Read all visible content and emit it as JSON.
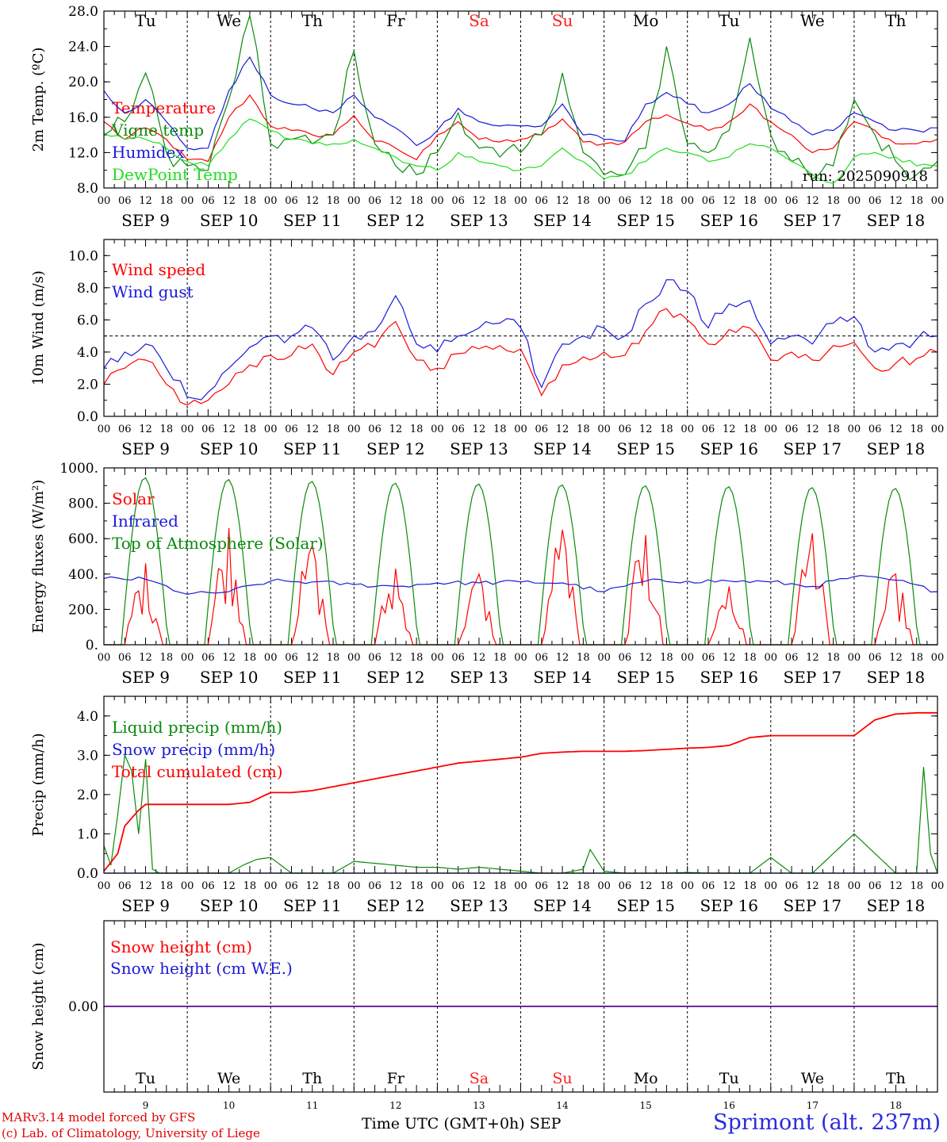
{
  "colors": {
    "red": "#ff0000",
    "green": "#0a8a0a",
    "blue": "#1a1ad8",
    "lightgreen": "#22dd22",
    "weekend": "#ff2020",
    "frame": "#000000"
  },
  "weekdays_top": [
    "Tu",
    "We",
    "Th",
    "Fr",
    "Sa",
    "Su",
    "Mo",
    "Tu",
    "We",
    "Th"
  ],
  "weekend_index": [
    4,
    5
  ],
  "date_labels": [
    "SEP  9",
    "SEP 10",
    "SEP 11",
    "SEP 12",
    "SEP 13",
    "SEP 14",
    "SEP 15",
    "SEP 16",
    "SEP 17",
    "SEP 18"
  ],
  "hour_ticks": [
    "00",
    "06",
    "12",
    "18"
  ],
  "bottom_day_numbers": [
    "9",
    "10",
    "11",
    "12",
    "13",
    "14",
    "15",
    "16",
    "17",
    "18"
  ],
  "footer": {
    "model": "MARv3.14 model forced by GFS",
    "lab": "(c) Lab. of Climatology, University of Liege",
    "xlabel": "Time UTC (GMT+0h) SEP",
    "station": "Sprimont (alt. 237m)"
  },
  "chart_data": [
    {
      "type": "line",
      "ylabel": "2m Temp. (ºC)",
      "ylim": [
        8,
        28
      ],
      "yticks": [
        "8.0",
        "12.0",
        "16.0",
        "20.0",
        "24.0",
        "28.0"
      ],
      "xlim_hours": [
        0,
        240
      ],
      "annotation": "run: 2025090918",
      "series": [
        {
          "name": "Temperature",
          "color": "red",
          "x": [
            0,
            6,
            12,
            18,
            24,
            30,
            36,
            42,
            48,
            54,
            60,
            66,
            72,
            78,
            84,
            90,
            96,
            102,
            108,
            114,
            120,
            126,
            132,
            138,
            144,
            150,
            156,
            162,
            168,
            174,
            180,
            186,
            192,
            198,
            204,
            210,
            216,
            222,
            228,
            234,
            240
          ],
          "y": [
            15.5,
            13.5,
            14.8,
            13.5,
            11.2,
            11.0,
            16.0,
            18.5,
            15.0,
            14.5,
            14.0,
            14.0,
            16.2,
            13.3,
            12.5,
            11.2,
            14.0,
            15.5,
            13.5,
            13.2,
            13.5,
            14.0,
            15.8,
            13.2,
            13.0,
            13.2,
            15.5,
            16.3,
            15.3,
            14.5,
            15.5,
            17.5,
            15.5,
            14.0,
            12.0,
            12.5,
            15.5,
            14.5,
            13.0,
            13.0,
            13.5
          ]
        },
        {
          "name": "Vigne temp",
          "color": "green",
          "x": [
            0,
            6,
            12,
            18,
            24,
            30,
            36,
            42,
            48,
            54,
            60,
            66,
            72,
            78,
            84,
            90,
            96,
            102,
            108,
            114,
            120,
            126,
            132,
            138,
            144,
            150,
            156,
            162,
            168,
            174,
            180,
            186,
            192,
            198,
            204,
            210,
            216,
            222,
            228,
            234,
            240
          ],
          "y": [
            14.0,
            15.5,
            21.0,
            12.0,
            10.5,
            10.0,
            18.0,
            27.5,
            13.0,
            13.5,
            13.0,
            14.0,
            23.5,
            13.0,
            10.5,
            9.5,
            12.0,
            16.5,
            12.5,
            11.5,
            12.0,
            14.0,
            21.0,
            12.0,
            9.5,
            9.5,
            12.5,
            24.0,
            13.0,
            12.0,
            14.5,
            25.0,
            14.0,
            11.0,
            9.0,
            10.5,
            18.0,
            14.0,
            11.0,
            9.5,
            11.0
          ]
        },
        {
          "name": "Humidex",
          "color": "blue",
          "x": [
            0,
            6,
            12,
            18,
            24,
            30,
            36,
            42,
            48,
            54,
            60,
            66,
            72,
            78,
            84,
            90,
            96,
            102,
            108,
            114,
            120,
            126,
            132,
            138,
            144,
            150,
            156,
            162,
            168,
            174,
            180,
            186,
            192,
            198,
            204,
            210,
            216,
            222,
            228,
            234,
            240
          ],
          "y": [
            19.0,
            16.5,
            18.0,
            15.5,
            12.5,
            12.5,
            19.0,
            22.8,
            18.5,
            17.5,
            17.0,
            16.5,
            18.5,
            16.0,
            14.8,
            12.8,
            14.5,
            17.0,
            15.5,
            15.0,
            15.0,
            15.0,
            17.5,
            14.0,
            13.5,
            13.3,
            17.5,
            18.8,
            17.5,
            16.5,
            17.5,
            19.8,
            17.0,
            15.5,
            14.0,
            14.5,
            16.5,
            15.5,
            14.5,
            14.5,
            14.8
          ]
        },
        {
          "name": "DewPoint Temp",
          "color": "lightgreen",
          "x": [
            0,
            6,
            12,
            18,
            24,
            30,
            36,
            42,
            48,
            54,
            60,
            66,
            72,
            78,
            84,
            90,
            96,
            102,
            108,
            114,
            120,
            126,
            132,
            138,
            144,
            150,
            156,
            162,
            168,
            174,
            180,
            186,
            192,
            198,
            204,
            210,
            216,
            222,
            228,
            234,
            240
          ],
          "y": [
            14.2,
            13.5,
            13.5,
            12.5,
            11.0,
            10.5,
            13.5,
            15.8,
            14.5,
            13.5,
            13.0,
            13.0,
            13.5,
            12.5,
            11.5,
            10.5,
            10.0,
            12.0,
            11.0,
            10.5,
            10.0,
            10.5,
            12.5,
            11.0,
            9.0,
            9.5,
            11.0,
            12.5,
            12.0,
            11.0,
            11.5,
            13.0,
            12.5,
            11.0,
            9.5,
            8.5,
            11.5,
            12.0,
            11.5,
            10.5,
            10.5
          ]
        }
      ]
    },
    {
      "type": "line",
      "ylabel": "10m Wind (m/s)",
      "ylim": [
        0,
        11
      ],
      "yticks": [
        "0.0",
        "2.0",
        "4.0",
        "6.0",
        "8.0",
        "10.0"
      ],
      "xlim_hours": [
        0,
        240
      ],
      "reference_line": 5,
      "series": [
        {
          "name": "Wind speed",
          "color": "red",
          "x": [
            0,
            6,
            12,
            18,
            24,
            30,
            36,
            42,
            48,
            54,
            60,
            66,
            72,
            78,
            84,
            90,
            96,
            102,
            108,
            114,
            120,
            126,
            132,
            138,
            144,
            150,
            156,
            162,
            168,
            174,
            180,
            186,
            192,
            198,
            204,
            210,
            216,
            222,
            228,
            234,
            240
          ],
          "y": [
            2.0,
            3.0,
            3.5,
            2.0,
            0.7,
            1.0,
            2.0,
            3.2,
            3.8,
            3.8,
            4.5,
            2.6,
            4.0,
            4.3,
            5.9,
            3.5,
            3.0,
            3.9,
            4.2,
            4.4,
            4.2,
            1.3,
            3.2,
            3.7,
            4.0,
            3.8,
            5.3,
            6.7,
            6.0,
            4.5,
            5.4,
            5.5,
            3.5,
            4.0,
            3.5,
            4.4,
            4.6,
            3.0,
            3.3,
            3.6,
            4.0
          ]
        },
        {
          "name": "Wind gust",
          "color": "blue",
          "x": [
            0,
            6,
            12,
            18,
            24,
            30,
            36,
            42,
            48,
            54,
            60,
            66,
            72,
            78,
            84,
            90,
            96,
            102,
            108,
            114,
            120,
            126,
            132,
            138,
            144,
            150,
            156,
            162,
            168,
            174,
            180,
            186,
            192,
            198,
            204,
            210,
            216,
            222,
            228,
            234,
            240
          ],
          "y": [
            3.0,
            4.0,
            4.5,
            3.0,
            1.2,
            1.5,
            3.0,
            4.3,
            5.0,
            5.0,
            5.5,
            3.5,
            5.0,
            5.3,
            7.5,
            4.5,
            4.0,
            5.0,
            5.5,
            5.8,
            5.5,
            1.8,
            4.5,
            5.0,
            5.5,
            5.0,
            7.0,
            8.5,
            7.8,
            5.5,
            7.0,
            7.2,
            4.5,
            5.0,
            4.5,
            5.8,
            6.2,
            4.0,
            4.5,
            4.8,
            5.0
          ]
        }
      ]
    },
    {
      "type": "line",
      "ylabel": "Energy fluxes (W/m²)",
      "ylim": [
        0,
        1000
      ],
      "yticks": [
        "0.",
        "200.",
        "400.",
        "600.",
        "800.",
        "1000."
      ],
      "xlim_hours": [
        0,
        240
      ],
      "series": [
        {
          "name": "Solar",
          "color": "red",
          "daily_peaks": [
            460,
            660,
            560,
            430,
            400,
            650,
            620,
            330,
            630,
            400
          ]
        },
        {
          "name": "Infrared",
          "color": "blue",
          "x": [
            0,
            12,
            24,
            36,
            48,
            60,
            72,
            84,
            96,
            108,
            120,
            132,
            144,
            156,
            168,
            180,
            192,
            204,
            216,
            228,
            240
          ],
          "y": [
            375,
            370,
            285,
            300,
            360,
            355,
            340,
            330,
            350,
            350,
            355,
            350,
            300,
            360,
            360,
            360,
            355,
            330,
            385,
            365,
            300
          ]
        },
        {
          "name": "Top of Atmosphere (Solar)",
          "color": "green",
          "daily_peaks": [
            945,
            935,
            925,
            915,
            910,
            905,
            900,
            895,
            890,
            885
          ]
        }
      ]
    },
    {
      "type": "line",
      "ylabel": "Precip (mm/h)",
      "ylim": [
        0,
        4.5
      ],
      "yticks": [
        "0.0",
        "1.0",
        "2.0",
        "3.0",
        "4.0"
      ],
      "xlim_hours": [
        0,
        240
      ],
      "series": [
        {
          "name": "Liquid precip (mm/h)",
          "color": "green",
          "x": [
            0,
            2,
            4,
            6,
            8,
            10,
            12,
            14,
            16,
            18,
            24,
            30,
            36,
            40,
            44,
            48,
            54,
            60,
            66,
            72,
            78,
            84,
            90,
            96,
            102,
            108,
            114,
            120,
            126,
            132,
            138,
            140,
            144,
            150,
            156,
            162,
            168,
            174,
            180,
            186,
            192,
            198,
            204,
            216,
            228,
            234,
            236,
            238,
            240
          ],
          "y": [
            0.7,
            0.2,
            1.5,
            3.0,
            2.6,
            1.0,
            2.9,
            0.1,
            0,
            0,
            0,
            0,
            0,
            0.2,
            0.35,
            0.4,
            0,
            0,
            0,
            0.3,
            0.25,
            0.2,
            0.15,
            0.15,
            0.1,
            0.15,
            0.1,
            0.05,
            0,
            0,
            0.1,
            0.6,
            0.05,
            0,
            0,
            0,
            0.02,
            0,
            0,
            0,
            0.4,
            0,
            0,
            1.0,
            0,
            0,
            2.7,
            0.5,
            0
          ]
        },
        {
          "name": "Snow precip (mm/h)",
          "color": "blue",
          "x": [
            0,
            240
          ],
          "y": [
            0,
            0
          ]
        },
        {
          "name": "Total cumulated (cm)",
          "color": "red",
          "x": [
            0,
            4,
            6,
            10,
            12,
            14,
            18,
            24,
            30,
            36,
            42,
            48,
            54,
            60,
            66,
            72,
            78,
            84,
            90,
            96,
            102,
            108,
            114,
            120,
            126,
            132,
            138,
            144,
            150,
            156,
            162,
            168,
            174,
            180,
            186,
            192,
            198,
            204,
            210,
            216,
            222,
            228,
            234,
            240
          ],
          "y": [
            0.05,
            0.5,
            1.2,
            1.6,
            1.75,
            1.75,
            1.75,
            1.75,
            1.75,
            1.75,
            1.8,
            2.05,
            2.05,
            2.1,
            2.2,
            2.3,
            2.4,
            2.5,
            2.6,
            2.7,
            2.8,
            2.85,
            2.9,
            2.95,
            3.05,
            3.08,
            3.1,
            3.1,
            3.1,
            3.12,
            3.15,
            3.18,
            3.2,
            3.25,
            3.45,
            3.5,
            3.5,
            3.5,
            3.5,
            3.5,
            3.9,
            4.05,
            4.08,
            4.08
          ]
        }
      ]
    },
    {
      "type": "line",
      "ylabel": "Snow height (cm)",
      "ylim": [
        -1,
        1
      ],
      "yticks": [
        "0.00"
      ],
      "xlim_hours": [
        0,
        240
      ],
      "series": [
        {
          "name": "Snow height (cm)",
          "color": "red",
          "x": [
            0,
            240
          ],
          "y": [
            0,
            0
          ]
        },
        {
          "name": "Snow height (cm W.E.)",
          "color": "blue",
          "x": [
            0,
            240
          ],
          "y": [
            0,
            0
          ]
        }
      ]
    }
  ]
}
